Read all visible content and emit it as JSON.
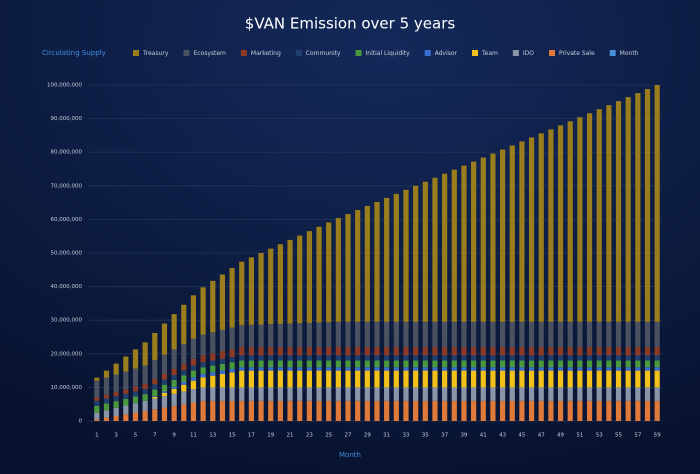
{
  "chart_data": {
    "type": "stacked-bar",
    "title": "$VAN Emission over 5 years",
    "y_label": "Circulating Supply",
    "x_label": "Month",
    "categories": [
      1,
      null,
      3,
      null,
      5,
      null,
      7,
      null,
      9,
      null,
      11,
      null,
      13,
      null,
      15,
      null,
      17,
      null,
      19,
      null,
      21,
      null,
      23,
      null,
      25,
      null,
      27,
      null,
      29,
      null,
      31,
      null,
      33,
      null,
      35,
      null,
      37,
      null,
      39,
      null,
      41,
      null,
      43,
      null,
      45,
      null,
      47,
      null,
      49,
      null,
      51,
      null,
      53,
      null,
      55,
      null,
      57,
      null,
      59
    ],
    "ylim": [
      0,
      100000000
    ],
    "yticks": [
      0,
      {
        "value": 10000000,
        "label": "10,000,000"
      },
      {
        "value": 20000000,
        "label": "20,000,000"
      },
      {
        "value": 30000000,
        "label": "30,000,000"
      },
      {
        "value": 40000000,
        "label": "40,000,000"
      },
      {
        "value": 50000000,
        "label": "50,000,000"
      },
      {
        "value": 60000000,
        "label": "60,000,000"
      },
      {
        "value": 70000000,
        "label": "70,000,000"
      },
      {
        "value": 80000000,
        "label": "80,000,000"
      },
      {
        "value": 90000000,
        "label": "90,000,000"
      },
      {
        "value": 100000000,
        "label": "100,000,000"
      }
    ],
    "grid": true,
    "series": [
      {
        "name": "Treasury",
        "color": "#9a7d1c",
        "values": [
          900000,
          2100000,
          3300000,
          4500000,
          5700000,
          6900000,
          8100000,
          9300000,
          10500000,
          11700000,
          12900000,
          14100000,
          15300000,
          16500000,
          17700000,
          18900000,
          20100000,
          21300000,
          22500000,
          23700000,
          24900000,
          26100000,
          27300000,
          28500000,
          29700000,
          30900000,
          32100000,
          33300000,
          34500000,
          35700000,
          36900000,
          38100000,
          39300000,
          40500000,
          41700000,
          42900000,
          44100000,
          45300000,
          46500000,
          47700000,
          48900000,
          50100000,
          51300000,
          52500000,
          53700000,
          54900000,
          56100000,
          57300000,
          58500000,
          59700000,
          60900000,
          62100000,
          63300000,
          64500000,
          65700000,
          66900000,
          68100000,
          69300000,
          70500000
        ]
      },
      {
        "name": "Ecosystem",
        "color": "#4a5262",
        "values": [
          5000000,
          5100000,
          5200000,
          5300000,
          5400000,
          5500000,
          5600000,
          5700000,
          5800000,
          5900000,
          6000000,
          6100000,
          6200000,
          6300000,
          6400000,
          6500000,
          6600000,
          6700000,
          6800000,
          6900000,
          7000000,
          7100000,
          7200000,
          7300000,
          7400000,
          7500000,
          7500000,
          7500000,
          7500000,
          7500000,
          7500000,
          7500000,
          7500000,
          7500000,
          7500000,
          7500000,
          7500000,
          7500000,
          7500000,
          7500000,
          7500000,
          7500000,
          7500000,
          7500000,
          7500000,
          7500000,
          7500000,
          7500000,
          7500000,
          7500000,
          7500000,
          7500000,
          7500000,
          7500000,
          7500000,
          7500000,
          7500000,
          7500000,
          7500000
        ]
      },
      {
        "name": "Marketing",
        "color": "#8b3a25",
        "values": [
          1000000,
          1100000,
          1200000,
          1300000,
          1400000,
          1500000,
          1600000,
          1700000,
          1800000,
          1900000,
          2000000,
          2100000,
          2200000,
          2300000,
          2400000,
          2500000,
          2500000,
          2500000,
          2500000,
          2500000,
          2500000,
          2500000,
          2500000,
          2500000,
          2500000,
          2500000,
          2500000,
          2500000,
          2500000,
          2500000,
          2500000,
          2500000,
          2500000,
          2500000,
          2500000,
          2500000,
          2500000,
          2500000,
          2500000,
          2500000,
          2500000,
          2500000,
          2500000,
          2500000,
          2500000,
          2500000,
          2500000,
          2500000,
          2500000,
          2500000,
          2500000,
          2500000,
          2500000,
          2500000,
          2500000,
          2500000,
          2500000,
          2500000,
          2500000
        ]
      },
      {
        "name": "Community",
        "color": "#1f3f6e",
        "values": [
          1500000,
          1500000,
          1500000,
          1500000,
          1500000,
          1500000,
          1500000,
          1500000,
          1500000,
          1500000,
          1500000,
          1500000,
          1500000,
          1500000,
          1500000,
          1500000,
          1500000,
          1500000,
          1500000,
          1500000,
          1500000,
          1500000,
          1500000,
          1500000,
          1500000,
          1500000,
          1500000,
          1500000,
          1500000,
          1500000,
          1500000,
          1500000,
          1500000,
          1500000,
          1500000,
          1500000,
          1500000,
          1500000,
          1500000,
          1500000,
          1500000,
          1500000,
          1500000,
          1500000,
          1500000,
          1500000,
          1500000,
          1500000,
          1500000,
          1500000,
          1500000,
          1500000,
          1500000,
          1500000,
          1500000,
          1500000,
          1500000,
          1500000,
          1500000
        ]
      },
      {
        "name": "Initial Liquidity",
        "color": "#4a9a3d",
        "values": [
          2000000,
          2000000,
          2000000,
          2000000,
          2000000,
          2000000,
          2000000,
          2000000,
          2000000,
          2000000,
          2000000,
          2000000,
          2000000,
          2000000,
          2000000,
          2000000,
          2000000,
          2000000,
          2000000,
          2000000,
          2000000,
          2000000,
          2000000,
          2000000,
          2000000,
          2000000,
          2000000,
          2000000,
          2000000,
          2000000,
          2000000,
          2000000,
          2000000,
          2000000,
          2000000,
          2000000,
          2000000,
          2000000,
          2000000,
          2000000,
          2000000,
          2000000,
          2000000,
          2000000,
          2000000,
          2000000,
          2000000,
          2000000,
          2000000,
          2000000,
          2000000,
          2000000,
          2000000,
          2000000,
          2000000,
          2000000,
          2000000,
          2000000,
          2000000
        ]
      },
      {
        "name": "Advisor",
        "color": "#3b6fd4",
        "values": [
          0,
          0,
          0,
          0,
          0,
          0,
          200000,
          400000,
          600000,
          800000,
          1000000,
          1000000,
          1000000,
          1000000,
          1000000,
          1000000,
          1000000,
          1000000,
          1000000,
          1000000,
          1000000,
          1000000,
          1000000,
          1000000,
          1000000,
          1000000,
          1000000,
          1000000,
          1000000,
          1000000,
          1000000,
          1000000,
          1000000,
          1000000,
          1000000,
          1000000,
          1000000,
          1000000,
          1000000,
          1000000,
          1000000,
          1000000,
          1000000,
          1000000,
          1000000,
          1000000,
          1000000,
          1000000,
          1000000,
          1000000,
          1000000,
          1000000,
          1000000,
          1000000,
          1000000,
          1000000,
          1000000,
          1000000,
          1000000
        ]
      },
      {
        "name": "Team",
        "color": "#f2c21a",
        "values": [
          0,
          0,
          0,
          0,
          0,
          0,
          500000,
          1000000,
          1500000,
          2000000,
          2500000,
          3000000,
          3500000,
          4000000,
          4500000,
          5000000,
          5000000,
          5000000,
          5000000,
          5000000,
          5000000,
          5000000,
          5000000,
          5000000,
          5000000,
          5000000,
          5000000,
          5000000,
          5000000,
          5000000,
          5000000,
          5000000,
          5000000,
          5000000,
          5000000,
          5000000,
          5000000,
          5000000,
          5000000,
          5000000,
          5000000,
          5000000,
          5000000,
          5000000,
          5000000,
          5000000,
          5000000,
          5000000,
          5000000,
          5000000,
          5000000,
          5000000,
          5000000,
          5000000,
          5000000,
          5000000,
          5000000,
          5000000,
          5000000
        ]
      },
      {
        "name": "IDO",
        "color": "#8a96a8",
        "values": [
          2000000,
          2200000,
          2400000,
          2600000,
          2800000,
          3000000,
          3200000,
          3400000,
          3600000,
          3800000,
          4000000,
          4000000,
          4000000,
          4000000,
          4000000,
          4000000,
          4000000,
          4000000,
          4000000,
          4000000,
          4000000,
          4000000,
          4000000,
          4000000,
          4000000,
          4000000,
          4000000,
          4000000,
          4000000,
          4000000,
          4000000,
          4000000,
          4000000,
          4000000,
          4000000,
          4000000,
          4000000,
          4000000,
          4000000,
          4000000,
          4000000,
          4000000,
          4000000,
          4000000,
          4000000,
          4000000,
          4000000,
          4000000,
          4000000,
          4000000,
          4000000,
          4000000,
          4000000,
          4000000,
          4000000,
          4000000,
          4000000,
          4000000,
          4000000
        ]
      },
      {
        "name": "Private Sale",
        "color": "#e07a3a",
        "values": [
          500000,
          1000000,
          1500000,
          2000000,
          2500000,
          3000000,
          3500000,
          4000000,
          4500000,
          5000000,
          5500000,
          6000000,
          6000000,
          6000000,
          6000000,
          6000000,
          6000000,
          6000000,
          6000000,
          6000000,
          6000000,
          6000000,
          6000000,
          6000000,
          6000000,
          6000000,
          6000000,
          6000000,
          6000000,
          6000000,
          6000000,
          6000000,
          6000000,
          6000000,
          6000000,
          6000000,
          6000000,
          6000000,
          6000000,
          6000000,
          6000000,
          6000000,
          6000000,
          6000000,
          6000000,
          6000000,
          6000000,
          6000000,
          6000000,
          6000000,
          6000000,
          6000000,
          6000000,
          6000000,
          6000000,
          6000000,
          6000000,
          6000000,
          6000000
        ]
      },
      {
        "name": "Month",
        "color": "#4a90d9",
        "values": [
          null,
          null,
          null,
          null,
          null,
          null,
          null,
          null,
          null,
          null,
          null,
          null,
          null,
          null,
          null,
          null,
          null,
          null,
          null,
          null,
          null,
          null,
          null,
          null,
          null,
          null,
          null,
          null,
          null,
          null,
          null,
          null,
          null,
          null,
          null,
          null,
          null,
          null,
          null,
          null,
          null,
          null,
          null,
          null,
          null,
          null,
          null,
          null,
          null,
          null,
          null,
          null,
          null,
          null,
          null,
          null,
          null,
          null,
          null
        ]
      }
    ]
  }
}
